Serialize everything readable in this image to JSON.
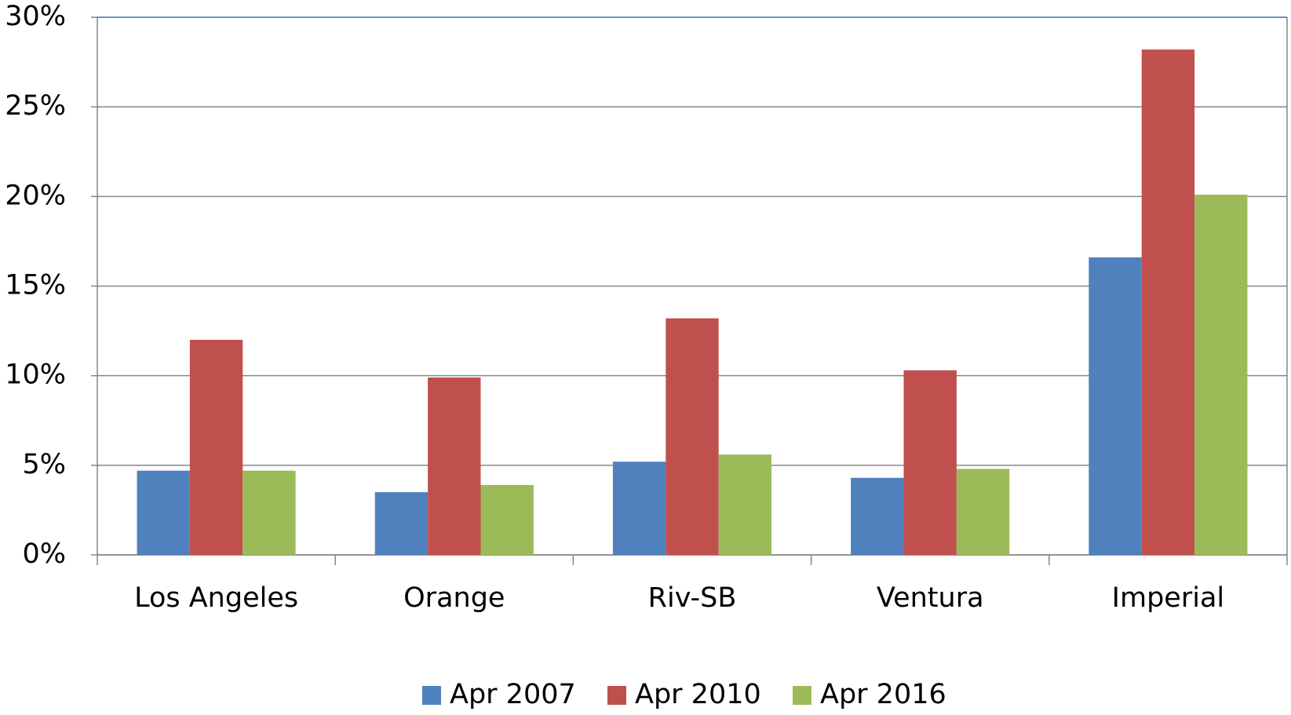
{
  "chart_data": {
    "type": "bar",
    "categories": [
      "Los Angeles",
      "Orange",
      "Riv-SB",
      "Ventura",
      "Imperial"
    ],
    "series": [
      {
        "name": "Apr 2007",
        "color": "#4f81bd",
        "values": [
          4.7,
          3.5,
          5.2,
          4.3,
          16.6
        ]
      },
      {
        "name": "Apr 2010",
        "color": "#c0504d",
        "values": [
          12.0,
          9.9,
          13.2,
          10.3,
          28.2
        ]
      },
      {
        "name": "Apr 2016",
        "color": "#9bbb59",
        "values": [
          4.7,
          3.9,
          5.6,
          4.8,
          20.1
        ]
      }
    ],
    "ylim": [
      0,
      30
    ],
    "yticks": [
      {
        "value": 0,
        "label": "0%"
      },
      {
        "value": 5,
        "label": "5%"
      },
      {
        "value": 10,
        "label": "10%"
      },
      {
        "value": 15,
        "label": "15%"
      },
      {
        "value": 20,
        "label": "20%"
      },
      {
        "value": 25,
        "label": "25%"
      },
      {
        "value": 30,
        "label": "30%"
      }
    ],
    "grid": true,
    "legend": "bottom"
  }
}
